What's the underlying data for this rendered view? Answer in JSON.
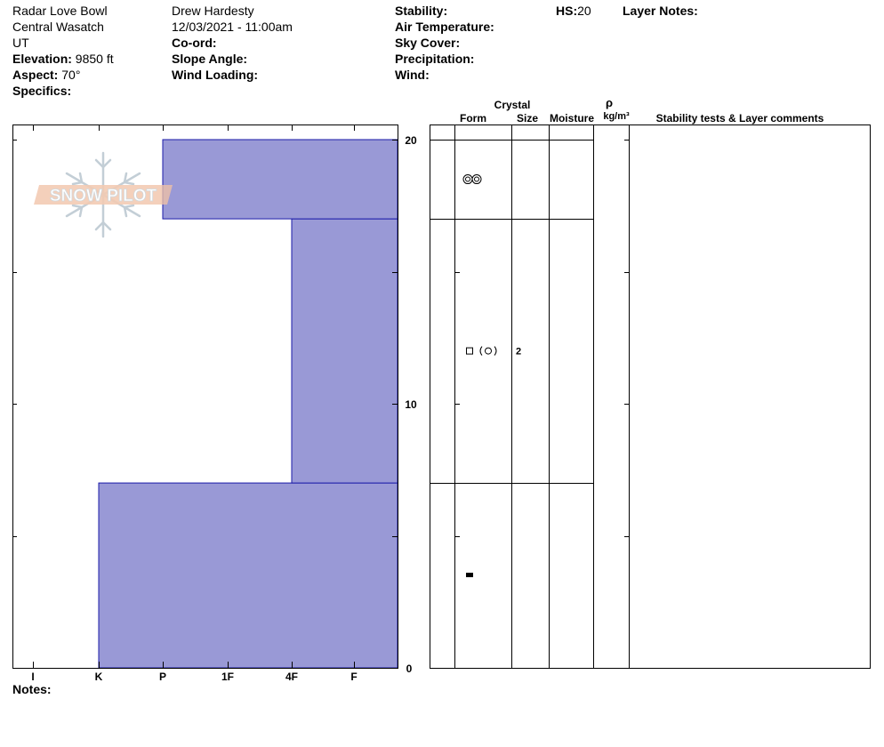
{
  "site": {
    "name": "Radar Love Bowl",
    "range": "Central Wasatch",
    "state": "UT",
    "elevation_label": "Elevation:",
    "elevation": "9850 ft",
    "aspect_label": "Aspect:",
    "aspect": "70°",
    "specifics_label": "Specifics:"
  },
  "observer": {
    "name": "Drew Hardesty",
    "datetime": "12/03/2021 - 11:00am",
    "coord_label": "Co-ord:",
    "slope_label": "Slope Angle:",
    "wind_loading_label": "Wind Loading:"
  },
  "conditions": {
    "stability_label": "Stability:",
    "air_temp_label": "Air Temperature:",
    "sky_label": "Sky Cover:",
    "precip_label": "Precipitation:",
    "wind_label": "Wind:"
  },
  "hs": {
    "label": "HS:",
    "value": "20"
  },
  "layer_notes_label": "Layer Notes:",
  "notes_label": "Notes:",
  "logo_text": "SNOW PILOT",
  "table_headers": {
    "crystal": "Crystal",
    "form": "Form",
    "size": "Size",
    "moisture": "Moisture",
    "rho": "ρ",
    "density_unit": "kg/m³",
    "comments": "Stability tests & Layer comments"
  },
  "chart_data": {
    "type": "bar",
    "orientation": "horizontal",
    "x_tick_labels": [
      "I",
      "K",
      "P",
      "1F",
      "4F",
      "F"
    ],
    "y_tick_labels": [
      "20",
      "10",
      "0"
    ],
    "ylim": [
      0,
      20
    ],
    "hardness_scale_order": [
      "F",
      "4F",
      "1F",
      "P",
      "K",
      "I"
    ],
    "fill_color": "#9999d6",
    "layers": [
      {
        "bottom": 0,
        "top": 7,
        "hardness": "K",
        "form": "square-dot",
        "size": ""
      },
      {
        "bottom": 7,
        "top": 17,
        "hardness": "4F",
        "form": "square-paren-circle",
        "size": "2"
      },
      {
        "bottom": 17,
        "top": 20,
        "hardness": "P",
        "form": "double-ring",
        "size": ""
      }
    ]
  }
}
